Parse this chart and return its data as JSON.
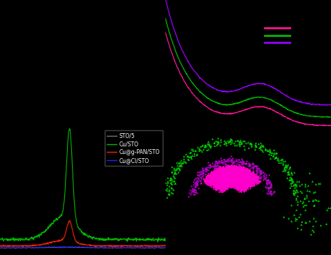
{
  "background_color": "#000000",
  "fig_width": 4.74,
  "fig_height": 3.66,
  "colors_xps": {
    "cupan": "#ff1493",
    "custo": "#00bb00",
    "cucl": "#9900ff"
  },
  "colors_auger": {
    "sto5": "#777777",
    "custo": "#00bb00",
    "cupan": "#ff2200",
    "cucl": "#2222ff"
  },
  "legend_labels": [
    "STO/5",
    "Cu/STO",
    "Cu@g-PAN/STO",
    "Cu@Cl/STO"
  ],
  "legend_line_colors": [
    "#777777",
    "#00bb00",
    "#ff2200",
    "#2222ff"
  ]
}
